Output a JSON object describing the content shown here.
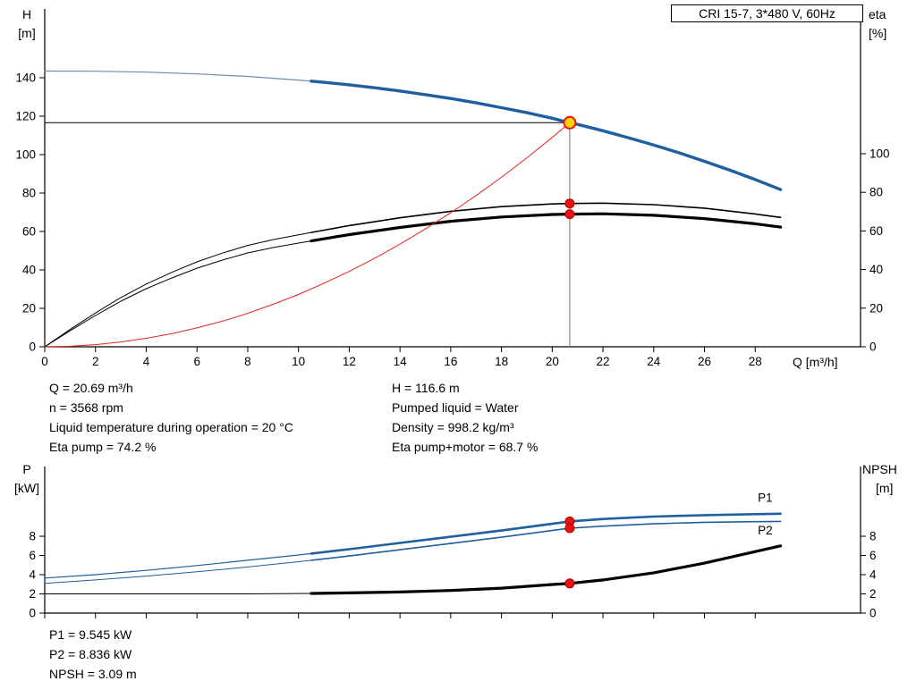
{
  "header": {
    "title": "CRI 15-7, 3*480 V, 60Hz"
  },
  "axis_labels": {
    "h": "H",
    "h_unit": "[m]",
    "eta": "eta",
    "eta_unit": "[%]",
    "q": "Q [m³/h]",
    "p": "P",
    "p_unit": "[kW]",
    "npsh": "NPSH",
    "npsh_unit": "[m]"
  },
  "results": {
    "top_left": [
      "Q = 20.69 m³/h",
      "n = 3568 rpm",
      "Liquid temperature during operation = 20 °C",
      "Eta pump = 74.2 %"
    ],
    "top_right": [
      "H = 116.6 m",
      "Pumped liquid = Water",
      "Density = 998.2 kg/m³",
      "Eta pump+motor = 68.7 %"
    ],
    "bottom": [
      "P1 = 9.545 kW",
      "P2 = 8.836 kW",
      "NPSH = 3.09 m"
    ]
  },
  "colors": {
    "curve_blue": "#1f5fa0",
    "curve_blue_thin": "#6c8bb0",
    "curve_black": "#000000",
    "system_red": "#e8241f",
    "dot_red": "#ee1111",
    "duty_yellow": "#ffd500",
    "duty_line_gray": "#8a8a8a"
  },
  "chart_data": [
    {
      "id": "qh_eta",
      "type": "line",
      "title": "QH and efficiency curves",
      "x_axis": {
        "label": "Q [m³/h]",
        "range": [
          0,
          32.15
        ],
        "ticks": [
          0,
          2,
          4,
          6,
          8,
          10,
          12,
          14,
          16,
          18,
          20,
          22,
          24,
          26,
          28
        ],
        "show_labels": true
      },
      "left_axis": {
        "label": "H [m]",
        "range": [
          0,
          175.8
        ],
        "ticks": [
          0,
          20,
          40,
          60,
          80,
          100,
          120,
          140
        ]
      },
      "right_axis": {
        "label": "eta [%]",
        "range": [
          0,
          175
        ],
        "ticks": [
          0,
          20,
          40,
          60,
          80,
          100
        ]
      },
      "grid": false,
      "series": [
        {
          "name": "qh-curve-thin",
          "axis": "left",
          "color": "#6c8bb0",
          "width": 1.2,
          "points": [
            [
              0,
              143.5
            ],
            [
              2,
              143.4
            ],
            [
              4,
              142.9
            ],
            [
              6,
              142.0
            ],
            [
              8,
              140.7
            ],
            [
              10,
              138.8
            ],
            [
              10.5,
              138.2
            ]
          ]
        },
        {
          "name": "qh-curve",
          "axis": "left",
          "color": "#1f5fa0",
          "width": 3.4,
          "points": [
            [
              10.5,
              138.2
            ],
            [
              11,
              137.6
            ],
            [
              12,
              136.3
            ],
            [
              13,
              134.8
            ],
            [
              14,
              133.1
            ],
            [
              15,
              131.2
            ],
            [
              16,
              129.2
            ],
            [
              17,
              126.9
            ],
            [
              18,
              124.4
            ],
            [
              19,
              121.8
            ],
            [
              20,
              118.9
            ],
            [
              20.69,
              116.6
            ],
            [
              21,
              115.7
            ],
            [
              22,
              112.4
            ],
            [
              23,
              108.8
            ],
            [
              24,
              105.0
            ],
            [
              25,
              100.9
            ],
            [
              26,
              96.5
            ],
            [
              27,
              91.9
            ],
            [
              28,
              87.0
            ],
            [
              29,
              81.8
            ]
          ]
        },
        {
          "name": "eta-pump-curve-thin",
          "axis": "right",
          "color": "#000000",
          "width": 1,
          "points": [
            [
              0,
              0
            ],
            [
              1,
              9
            ],
            [
              2,
              17.5
            ],
            [
              3,
              25.5
            ],
            [
              4,
              32.5
            ],
            [
              5,
              38.5
            ],
            [
              6,
              44
            ],
            [
              7,
              48.5
            ],
            [
              8,
              52.5
            ],
            [
              9,
              55.5
            ],
            [
              10,
              58
            ],
            [
              10.5,
              59.2
            ]
          ]
        },
        {
          "name": "eta-pump-curve",
          "axis": "right",
          "color": "#000000",
          "width": 1.6,
          "points": [
            [
              10.5,
              59.2
            ],
            [
              12,
              62.8
            ],
            [
              14,
              66.8
            ],
            [
              16,
              70.2
            ],
            [
              18,
              72.6
            ],
            [
              20,
              74.0
            ],
            [
              20.69,
              74.2
            ],
            [
              22,
              74.4
            ],
            [
              24,
              73.6
            ],
            [
              26,
              71.8
            ],
            [
              28,
              68.8
            ],
            [
              29,
              67.0
            ]
          ]
        },
        {
          "name": "eta-pump-motor-curve-thin",
          "axis": "right",
          "color": "#000000",
          "width": 1,
          "points": [
            [
              0,
              0
            ],
            [
              1,
              8.3
            ],
            [
              2,
              16.2
            ],
            [
              3,
              23.6
            ],
            [
              4,
              30.1
            ],
            [
              5,
              35.6
            ],
            [
              6,
              40.7
            ],
            [
              7,
              44.9
            ],
            [
              8,
              48.6
            ],
            [
              9,
              51.4
            ],
            [
              10,
              53.7
            ],
            [
              10.5,
              54.8
            ]
          ]
        },
        {
          "name": "eta-pump-motor-curve",
          "axis": "right",
          "color": "#000000",
          "width": 3.2,
          "points": [
            [
              10.5,
              54.8
            ],
            [
              12,
              58.1
            ],
            [
              14,
              61.8
            ],
            [
              16,
              65.0
            ],
            [
              18,
              67.2
            ],
            [
              20,
              68.5
            ],
            [
              20.69,
              68.7
            ],
            [
              22,
              68.9
            ],
            [
              24,
              68.1
            ],
            [
              26,
              66.4
            ],
            [
              28,
              63.7
            ],
            [
              29,
              62.0
            ]
          ]
        },
        {
          "name": "system-curve",
          "axis": "left",
          "color": "#e8241f",
          "width": 1,
          "points": [
            [
              0,
              0
            ],
            [
              1,
              0.3
            ],
            [
              2,
              1.1
            ],
            [
              3,
              2.5
            ],
            [
              4,
              4.4
            ],
            [
              5,
              6.8
            ],
            [
              6,
              9.8
            ],
            [
              7,
              13.3
            ],
            [
              8,
              17.4
            ],
            [
              9,
              22.1
            ],
            [
              10,
              27.2
            ],
            [
              11,
              33.0
            ],
            [
              12,
              39.2
            ],
            [
              13,
              46.0
            ],
            [
              14,
              53.4
            ],
            [
              15,
              61.3
            ],
            [
              16,
              69.7
            ],
            [
              17,
              78.7
            ],
            [
              18,
              88.2
            ],
            [
              19,
              98.3
            ],
            [
              20,
              108.9
            ],
            [
              20.69,
              116.6
            ]
          ]
        }
      ],
      "reference_lines": [
        {
          "name": "duty-head-line",
          "axis": "left",
          "color": "#000000",
          "width": 1,
          "points": [
            [
              0,
              116.6
            ],
            [
              20.69,
              116.6
            ]
          ]
        },
        {
          "name": "duty-flow-line",
          "axis": "left",
          "color": "#8a8a8a",
          "width": 1.2,
          "points": [
            [
              20.69,
              116.6
            ],
            [
              20.69,
              0
            ]
          ]
        }
      ],
      "markers": [
        {
          "name": "duty-point-marker",
          "axis": "left",
          "q": 20.69,
          "value": 116.6,
          "r": 6.5,
          "fill": "#ffd500",
          "stroke": "#ee1111",
          "stroke_width": 2
        },
        {
          "name": "eta-pump-dot",
          "axis": "right",
          "q": 20.69,
          "value": 74.2,
          "r": 5,
          "fill": "#ee1111",
          "stroke": "#aa0000",
          "stroke_width": 1
        },
        {
          "name": "eta-pump-motor-dot",
          "axis": "right",
          "q": 20.69,
          "value": 68.7,
          "r": 5,
          "fill": "#ee1111",
          "stroke": "#aa0000",
          "stroke_width": 1
        }
      ],
      "curve_labels": []
    },
    {
      "id": "power_npsh",
      "type": "line",
      "title": "Power and NPSH curves",
      "x_axis": {
        "label": "",
        "range": [
          0,
          32.15
        ],
        "ticks": [
          0,
          2,
          4,
          6,
          8,
          10,
          12,
          14,
          16,
          18,
          20,
          22,
          24,
          26,
          28
        ],
        "show_labels": false
      },
      "left_axis": {
        "label": "P [kW]",
        "range": [
          0,
          15.26
        ],
        "ticks": [
          0,
          2,
          4,
          6,
          8
        ]
      },
      "right_axis": {
        "label": "NPSH [m]",
        "range": [
          0,
          15.26
        ],
        "ticks": [
          0,
          2,
          4,
          6,
          8
        ]
      },
      "grid": false,
      "series": [
        {
          "name": "p1-curve-thin",
          "axis": "left",
          "color": "#1f5fa0",
          "width": 1.2,
          "points": [
            [
              0,
              3.65
            ],
            [
              2,
              4.0
            ],
            [
              4,
              4.45
            ],
            [
              6,
              4.95
            ],
            [
              8,
              5.5
            ],
            [
              10,
              6.05
            ],
            [
              10.5,
              6.2
            ]
          ]
        },
        {
          "name": "p1-curve",
          "axis": "left",
          "color": "#1f5fa0",
          "width": 2.6,
          "points": [
            [
              10.5,
              6.2
            ],
            [
              12,
              6.65
            ],
            [
              14,
              7.3
            ],
            [
              16,
              7.95
            ],
            [
              18,
              8.6
            ],
            [
              20,
              9.3
            ],
            [
              20.69,
              9.545
            ],
            [
              22,
              9.8
            ],
            [
              24,
              10.05
            ],
            [
              26,
              10.2
            ],
            [
              28,
              10.3
            ],
            [
              29,
              10.35
            ]
          ]
        },
        {
          "name": "p2-curve-thin",
          "axis": "left",
          "color": "#1f5fa0",
          "width": 1,
          "points": [
            [
              0,
              3.1
            ],
            [
              2,
              3.45
            ],
            [
              4,
              3.85
            ],
            [
              6,
              4.3
            ],
            [
              8,
              4.8
            ],
            [
              10,
              5.35
            ],
            [
              10.5,
              5.5
            ]
          ]
        },
        {
          "name": "p2-curve",
          "axis": "left",
          "color": "#1f5fa0",
          "width": 1.6,
          "points": [
            [
              10.5,
              5.5
            ],
            [
              12,
              5.95
            ],
            [
              14,
              6.6
            ],
            [
              16,
              7.25
            ],
            [
              18,
              7.9
            ],
            [
              20,
              8.6
            ],
            [
              20.69,
              8.836
            ],
            [
              22,
              9.05
            ],
            [
              24,
              9.3
            ],
            [
              26,
              9.45
            ],
            [
              28,
              9.52
            ],
            [
              29,
              9.55
            ]
          ]
        },
        {
          "name": "npsh-curve-thin",
          "axis": "right",
          "color": "#000000",
          "width": 1,
          "points": [
            [
              0,
              2.0
            ],
            [
              4,
              2.0
            ],
            [
              8,
              2.0
            ],
            [
              10.5,
              2.05
            ]
          ]
        },
        {
          "name": "npsh-curve",
          "axis": "right",
          "color": "#000000",
          "width": 3.2,
          "points": [
            [
              10.5,
              2.05
            ],
            [
              12,
              2.1
            ],
            [
              14,
              2.2
            ],
            [
              16,
              2.35
            ],
            [
              18,
              2.6
            ],
            [
              20,
              2.98
            ],
            [
              20.69,
              3.09
            ],
            [
              22,
              3.45
            ],
            [
              24,
              4.2
            ],
            [
              26,
              5.2
            ],
            [
              28,
              6.4
            ],
            [
              29,
              7.0
            ]
          ]
        }
      ],
      "reference_lines": [],
      "markers": [
        {
          "name": "p1-dot",
          "axis": "left",
          "q": 20.69,
          "value": 9.545,
          "r": 5,
          "fill": "#ee1111",
          "stroke": "#aa0000",
          "stroke_width": 1
        },
        {
          "name": "p2-dot",
          "axis": "left",
          "q": 20.69,
          "value": 8.836,
          "r": 5,
          "fill": "#ee1111",
          "stroke": "#aa0000",
          "stroke_width": 1
        },
        {
          "name": "npsh-dot",
          "axis": "right",
          "q": 20.69,
          "value": 3.09,
          "r": 5,
          "fill": "#ee1111",
          "stroke": "#aa0000",
          "stroke_width": 1
        }
      ],
      "curve_labels": [
        {
          "name": "p1-curve-label",
          "text": "P1",
          "q": 28.1,
          "value": 11.6,
          "axis": "left",
          "color": "#1f5fa0"
        },
        {
          "name": "p2-curve-label",
          "text": "P2",
          "q": 28.1,
          "value": 8.2,
          "axis": "left",
          "color": "#1f5fa0"
        }
      ]
    }
  ]
}
